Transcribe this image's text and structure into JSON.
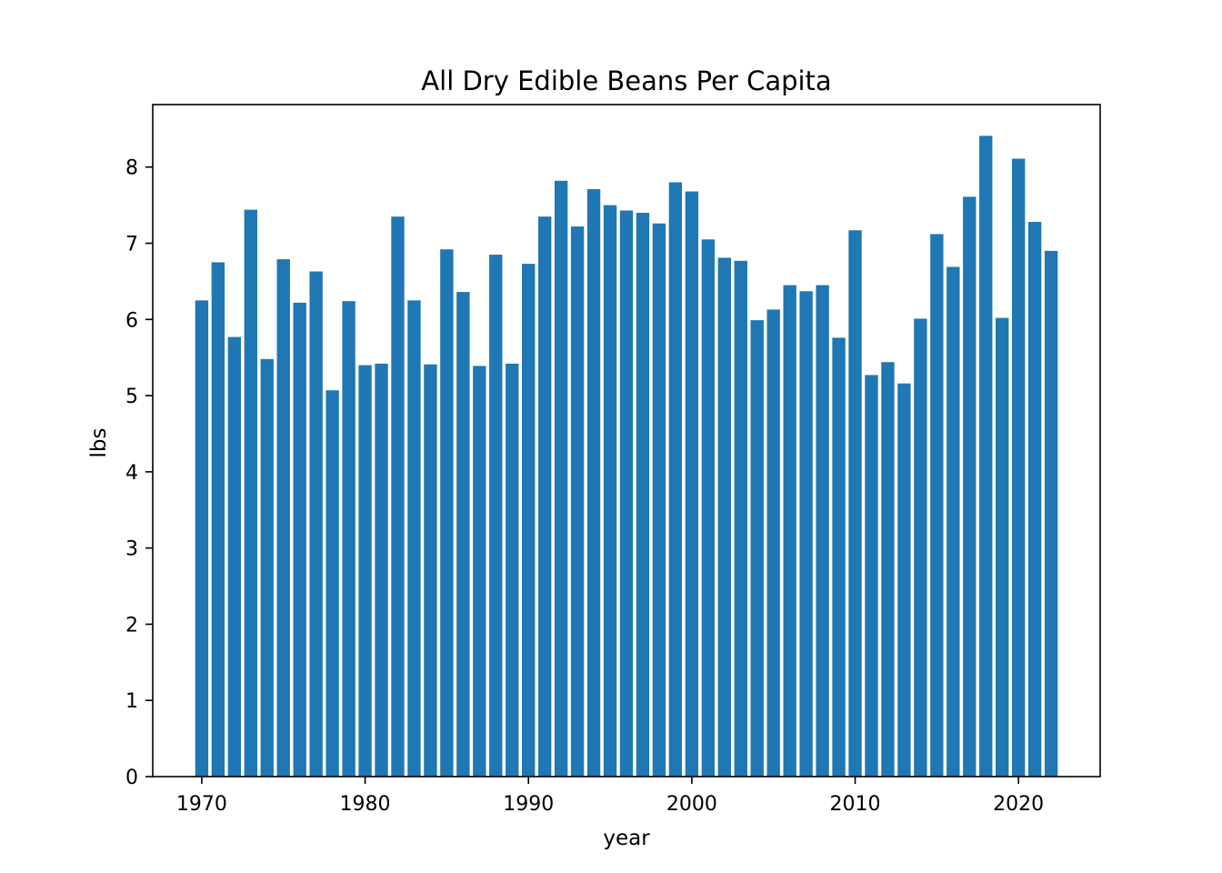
{
  "chart_data": {
    "type": "bar",
    "title": "All Dry Edible Beans Per Capita",
    "xlabel": "year",
    "ylabel": "lbs",
    "x": [
      1970,
      1971,
      1972,
      1973,
      1974,
      1975,
      1976,
      1977,
      1978,
      1979,
      1980,
      1981,
      1982,
      1983,
      1984,
      1985,
      1986,
      1987,
      1988,
      1989,
      1990,
      1991,
      1992,
      1993,
      1994,
      1995,
      1996,
      1997,
      1998,
      1999,
      2000,
      2001,
      2002,
      2003,
      2004,
      2005,
      2006,
      2007,
      2008,
      2009,
      2010,
      2011,
      2012,
      2013,
      2014,
      2015,
      2016,
      2017,
      2018,
      2019,
      2020,
      2021,
      2022
    ],
    "values": [
      6.25,
      6.75,
      5.77,
      7.44,
      5.48,
      6.79,
      6.22,
      6.63,
      5.07,
      6.24,
      5.4,
      5.42,
      7.35,
      6.25,
      5.41,
      6.92,
      6.36,
      5.39,
      6.85,
      5.42,
      6.73,
      7.35,
      7.82,
      7.22,
      7.71,
      7.5,
      7.43,
      7.4,
      7.26,
      7.8,
      7.68,
      7.05,
      6.81,
      6.77,
      5.99,
      6.13,
      6.45,
      6.37,
      6.45,
      5.76,
      7.17,
      5.27,
      5.44,
      5.16,
      6.01,
      7.12,
      6.69,
      7.61,
      8.41,
      6.02,
      8.11,
      7.28,
      6.9
    ],
    "xlim": [
      1967,
      2025
    ],
    "ylim": [
      0,
      8.82
    ],
    "xticks": [
      "1970",
      "1980",
      "1990",
      "2000",
      "2010",
      "2020"
    ],
    "yticks": [
      "0",
      "1",
      "2",
      "3",
      "4",
      "5",
      "6",
      "7",
      "8"
    ],
    "bar_color": "#1f77b4",
    "grid": false,
    "legend": "none"
  }
}
